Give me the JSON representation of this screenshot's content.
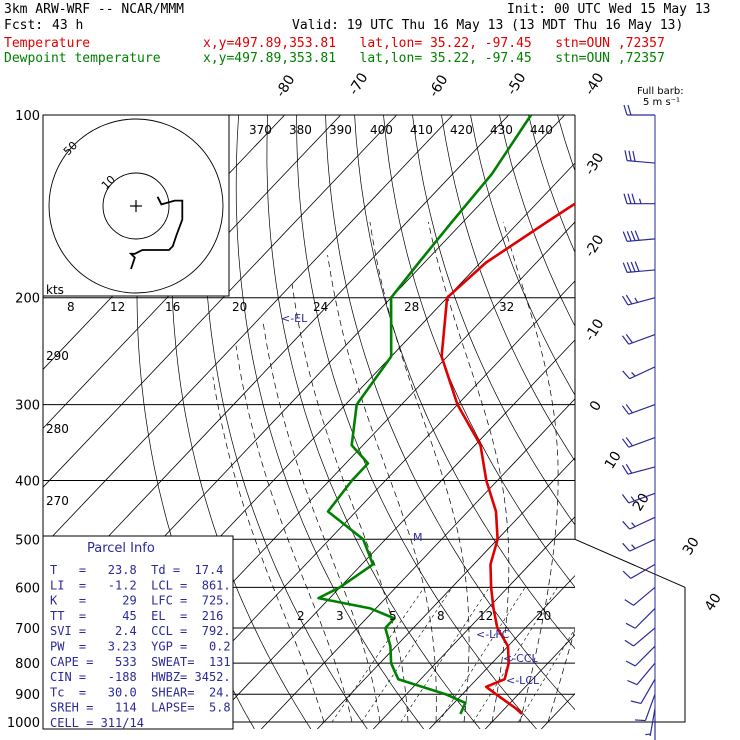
{
  "header": {
    "model": "3km ARW-WRF -- NCAR/MMM",
    "init": "Init: 00 UTC Wed 15 May 13",
    "fcst_label": "Fcst:",
    "fcst_hours": "43 h",
    "valid": "Valid: 19 UTC Thu 16 May 13 (13 MDT Thu 16 May 13)",
    "temp_label": "Temperature",
    "dew_label": "Dewpoint temperature",
    "loc": "x,y=497.89,353.81   lat,lon= 35.22, -97.45   stn=OUN ,72357"
  },
  "colors": {
    "temperature": "#e00000",
    "dewpoint": "#008000",
    "wind": "#2a2a9a",
    "grid": "#000000"
  },
  "wind_barb_label": "Full barb:\n5 m s⁻¹",
  "hodograph": {
    "units": "kts",
    "ring_labels": [
      "50",
      "10"
    ]
  },
  "parcel_info": {
    "title": "Parcel Info",
    "rows": [
      "T   =   23.8  Td =  17.4",
      "LI  =   -1.2  LCL =  861.",
      "K   =     29  LFC =  725.",
      "TT  =     45  EL  =  216",
      "SVI =    2.4  CCL =  792.",
      "PW  =   3.23  YGP =   0.2",
      "CAPE =   533  SWEAT=  131",
      "CIN =   -188  HWBZ= 3452.",
      "Tc  =   30.0  SHEAR=  24.",
      "SREH =   114  LAPSE=  5.8",
      "CELL = 311/14"
    ]
  },
  "annotations": {
    "el": "<-EL",
    "lfc": "<-LFC",
    "ccl": "<-CCL",
    "lcl": "<-LCL",
    "m": "M"
  },
  "chart_data": {
    "type": "line",
    "title": "",
    "y_axis": "pressure (hPa), log scale",
    "ylim": [
      1000,
      100
    ],
    "y_ticks": [
      100,
      200,
      300,
      400,
      500,
      600,
      700,
      800,
      900,
      1000
    ],
    "isotherm_labels": [
      "-80",
      "-70",
      "-60",
      "-50",
      "-40",
      "-30",
      "-20",
      "-10",
      "0",
      "10",
      "20",
      "30",
      "40"
    ],
    "theta_e_labels": [
      "370",
      "380",
      "390",
      "400",
      "410",
      "420",
      "430",
      "440"
    ],
    "dry_adiabat_labels": [
      "290",
      "280",
      "270"
    ],
    "mixing_ratio_labels_upper": [
      "8",
      "12",
      "16",
      "20",
      "24",
      "28",
      "32"
    ],
    "mixing_ratio_labels_lower": [
      "2",
      "3",
      "5",
      "8",
      "12",
      "20"
    ],
    "series": [
      {
        "name": "Temperature",
        "points": [
          {
            "p": 100,
            "T": -43
          },
          {
            "p": 125,
            "T": -50
          },
          {
            "p": 150,
            "T": -55
          },
          {
            "p": 175,
            "T": -59
          },
          {
            "p": 200,
            "T": -60
          },
          {
            "p": 250,
            "T": -51
          },
          {
            "p": 300,
            "T": -40
          },
          {
            "p": 350,
            "T": -29
          },
          {
            "p": 400,
            "T": -22
          },
          {
            "p": 450,
            "T": -15
          },
          {
            "p": 500,
            "T": -10
          },
          {
            "p": 550,
            "T": -7
          },
          {
            "p": 600,
            "T": -3
          },
          {
            "p": 650,
            "T": 1
          },
          {
            "p": 700,
            "T": 5
          },
          {
            "p": 750,
            "T": 10
          },
          {
            "p": 800,
            "T": 13
          },
          {
            "p": 850,
            "T": 15
          },
          {
            "p": 875,
            "T": 13
          },
          {
            "p": 900,
            "T": 16
          },
          {
            "p": 950,
            "T": 22
          },
          {
            "p": 970,
            "T": 24
          }
        ]
      },
      {
        "name": "Dewpoint temperature",
        "points": [
          {
            "p": 100,
            "T": -76
          },
          {
            "p": 125,
            "T": -73
          },
          {
            "p": 150,
            "T": -72
          },
          {
            "p": 175,
            "T": -71
          },
          {
            "p": 200,
            "T": -70
          },
          {
            "p": 250,
            "T": -60
          },
          {
            "p": 300,
            "T": -58
          },
          {
            "p": 350,
            "T": -52
          },
          {
            "p": 375,
            "T": -46
          },
          {
            "p": 400,
            "T": -46
          },
          {
            "p": 450,
            "T": -45
          },
          {
            "p": 500,
            "T": -34
          },
          {
            "p": 550,
            "T": -28
          },
          {
            "p": 600,
            "T": -30
          },
          {
            "p": 625,
            "T": -32
          },
          {
            "p": 650,
            "T": -21
          },
          {
            "p": 675,
            "T": -15
          },
          {
            "p": 700,
            "T": -15
          },
          {
            "p": 750,
            "T": -11
          },
          {
            "p": 800,
            "T": -8
          },
          {
            "p": 850,
            "T": -4
          },
          {
            "p": 900,
            "T": 7
          },
          {
            "p": 930,
            "T": 12
          },
          {
            "p": 970,
            "T": 13
          }
        ]
      }
    ],
    "hodograph_kts": [
      [
        4,
        -2
      ],
      [
        6,
        -6
      ],
      [
        13,
        -4
      ],
      [
        17,
        -4
      ],
      [
        17,
        -14
      ],
      [
        14,
        -22
      ],
      [
        12,
        -28
      ],
      [
        10,
        -30
      ],
      [
        2,
        -30
      ],
      [
        -4,
        -30
      ],
      [
        -8,
        -32
      ],
      [
        -10,
        -32
      ],
      [
        -8,
        -34
      ],
      [
        -10,
        -40
      ]
    ],
    "winds": [
      {
        "p": 100,
        "dir": 270,
        "spd": 20
      },
      {
        "p": 120,
        "dir": 275,
        "spd": 30
      },
      {
        "p": 140,
        "dir": 270,
        "spd": 35
      },
      {
        "p": 160,
        "dir": 265,
        "spd": 40
      },
      {
        "p": 180,
        "dir": 265,
        "spd": 40
      },
      {
        "p": 200,
        "dir": 255,
        "spd": 25
      },
      {
        "p": 230,
        "dir": 250,
        "spd": 20
      },
      {
        "p": 260,
        "dir": 245,
        "spd": 15
      },
      {
        "p": 300,
        "dir": 250,
        "spd": 20
      },
      {
        "p": 340,
        "dir": 250,
        "spd": 20
      },
      {
        "p": 380,
        "dir": 255,
        "spd": 20
      },
      {
        "p": 420,
        "dir": 250,
        "spd": 15
      },
      {
        "p": 460,
        "dir": 245,
        "spd": 15
      },
      {
        "p": 500,
        "dir": 245,
        "spd": 15
      },
      {
        "p": 550,
        "dir": 240,
        "spd": 10
      },
      {
        "p": 600,
        "dir": 230,
        "spd": 10
      },
      {
        "p": 650,
        "dir": 225,
        "spd": 10
      },
      {
        "p": 700,
        "dir": 230,
        "spd": 10
      },
      {
        "p": 750,
        "dir": 225,
        "spd": 10
      },
      {
        "p": 800,
        "dir": 220,
        "spd": 10
      },
      {
        "p": 850,
        "dir": 210,
        "spd": 10
      },
      {
        "p": 900,
        "dir": 200,
        "spd": 10
      },
      {
        "p": 950,
        "dir": 190,
        "spd": 5
      },
      {
        "p": 990,
        "dir": 180,
        "spd": 5
      }
    ]
  }
}
